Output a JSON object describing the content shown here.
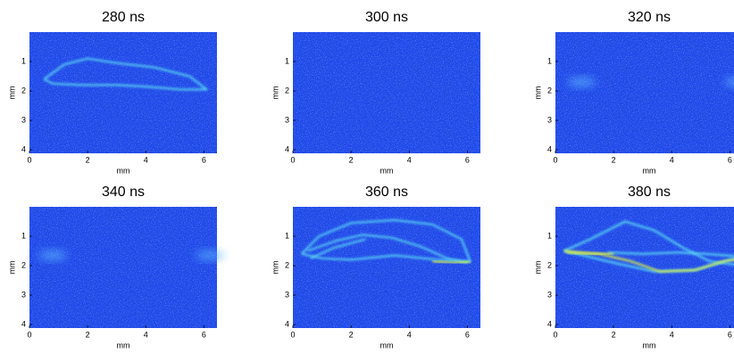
{
  "chart_data": [
    {
      "type": "image",
      "title": "280 ns",
      "xlabel": "mm",
      "ylabel": "mm",
      "xlim": [
        0,
        6.45
      ],
      "ylim": [
        0,
        4.12
      ],
      "xticks": [
        0,
        2,
        4,
        6
      ],
      "yticks": [
        1,
        2,
        3,
        4
      ]
    },
    {
      "type": "image",
      "title": "300 ns",
      "xlabel": "mm",
      "ylabel": "mm",
      "xlim": [
        0,
        6.45
      ],
      "ylim": [
        0,
        4.12
      ],
      "xticks": [
        0,
        2,
        4,
        6
      ],
      "yticks": [
        1,
        2,
        3,
        4
      ]
    },
    {
      "type": "image",
      "title": "320 ns",
      "xlabel": "mm",
      "ylabel": "mm",
      "xlim": [
        0,
        6.45
      ],
      "ylim": [
        0,
        4.12
      ],
      "xticks": [
        0,
        2,
        4,
        6
      ],
      "yticks": [
        1,
        2,
        3,
        4
      ]
    },
    {
      "type": "image",
      "title": "340 ns",
      "xlabel": "mm",
      "ylabel": "mm",
      "xlim": [
        0,
        6.45
      ],
      "ylim": [
        0,
        4.12
      ],
      "xticks": [
        0,
        2,
        4,
        6
      ],
      "yticks": [
        1,
        2,
        3,
        4
      ]
    },
    {
      "type": "image",
      "title": "360 ns",
      "xlabel": "mm",
      "ylabel": "mm",
      "xlim": [
        0,
        6.45
      ],
      "ylim": [
        0,
        4.12
      ],
      "xticks": [
        0,
        2,
        4,
        6
      ],
      "yticks": [
        1,
        2,
        3,
        4
      ]
    },
    {
      "type": "image",
      "title": "380 ns",
      "xlabel": "mm",
      "ylabel": "mm",
      "xlim": [
        0,
        6.45
      ],
      "ylim": [
        0,
        4.12
      ],
      "xticks": [
        0,
        2,
        4,
        6
      ],
      "yticks": [
        1,
        2,
        3,
        4
      ]
    }
  ]
}
